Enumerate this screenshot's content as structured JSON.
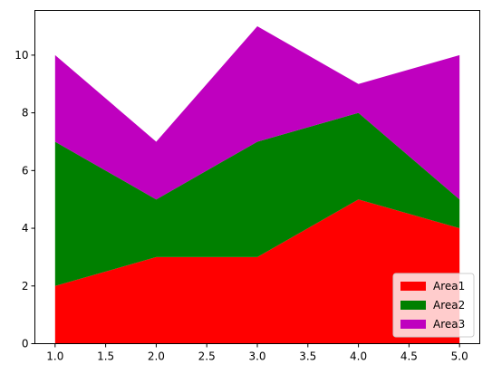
{
  "chart_data": {
    "type": "area",
    "stacked": true,
    "x": [
      1.0,
      2.0,
      3.0,
      4.0,
      5.0
    ],
    "series": [
      {
        "name": "Area1",
        "color": "#ff0000",
        "values": [
          2,
          3,
          3,
          5,
          4
        ]
      },
      {
        "name": "Area2",
        "color": "#008000",
        "values": [
          5,
          2,
          4,
          3,
          1
        ]
      },
      {
        "name": "Area3",
        "color": "#bf00bf",
        "values": [
          3,
          2,
          4,
          1,
          5
        ]
      }
    ],
    "xlim": [
      0.8,
      5.2
    ],
    "ylim": [
      0,
      11.55
    ],
    "x_ticks": [
      "1.0",
      "1.5",
      "2.0",
      "2.5",
      "3.0",
      "3.5",
      "4.0",
      "4.5",
      "5.0"
    ],
    "y_ticks": [
      "0",
      "2",
      "4",
      "6",
      "8",
      "10"
    ],
    "legend_position": "lower-right",
    "grid": false
  }
}
